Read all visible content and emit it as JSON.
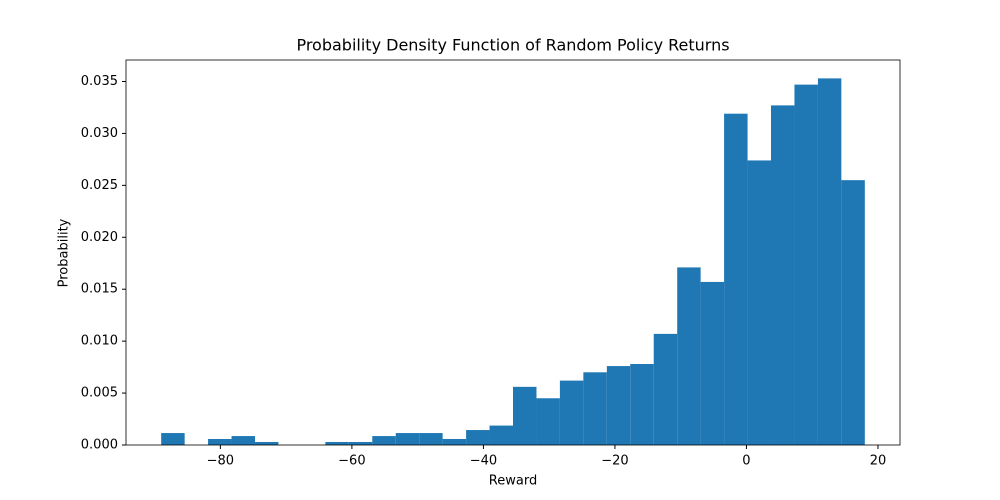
{
  "chart_data": {
    "type": "histogram",
    "title": "Probability Density Function of Random Policy Returns",
    "x_label": "Reward",
    "y_label": "Probability",
    "color": "#1f77b4",
    "bins": [
      -89,
      -85.43,
      -81.87,
      -78.3,
      -74.73,
      -71.17,
      -67.6,
      -64.03,
      -60.47,
      -56.9,
      -53.33,
      -49.77,
      -46.2,
      -42.63,
      -39.07,
      -35.5,
      -31.93,
      -28.37,
      -24.8,
      -21.23,
      -17.67,
      -14.1,
      -10.53,
      -6.97,
      -3.4,
      0.17,
      3.73,
      7.3,
      10.87,
      14.43,
      18
    ],
    "values": [
      0.00115,
      0,
      0.00058,
      0.00086,
      0.00029,
      0,
      0,
      0.00029,
      0.00029,
      0.00086,
      0.00115,
      0.00115,
      0.00058,
      0.00144,
      0.00187,
      0.0056,
      0.0045,
      0.0062,
      0.007,
      0.0076,
      0.0078,
      0.0107,
      0.0171,
      0.0157,
      0.0319,
      0.0274,
      0.0327,
      0.0347,
      0.0353,
      0.0255
    ],
    "xlim": [
      -94.35,
      23.35
    ],
    "ylim": [
      0,
      0.03707
    ],
    "xticks": [
      {
        "value": -80,
        "label": "−80"
      },
      {
        "value": -60,
        "label": "−60"
      },
      {
        "value": -40,
        "label": "−40"
      },
      {
        "value": -20,
        "label": "−20"
      },
      0,
      20
    ],
    "yticks": [
      {
        "value": 0,
        "label": "0.000"
      },
      0.005,
      {
        "value": 0.01,
        "label": "0.010"
      },
      0.015,
      {
        "value": 0.02,
        "label": "0.020"
      },
      0.025,
      {
        "value": 0.03,
        "label": "0.030"
      },
      0.035
    ],
    "grid": false
  }
}
